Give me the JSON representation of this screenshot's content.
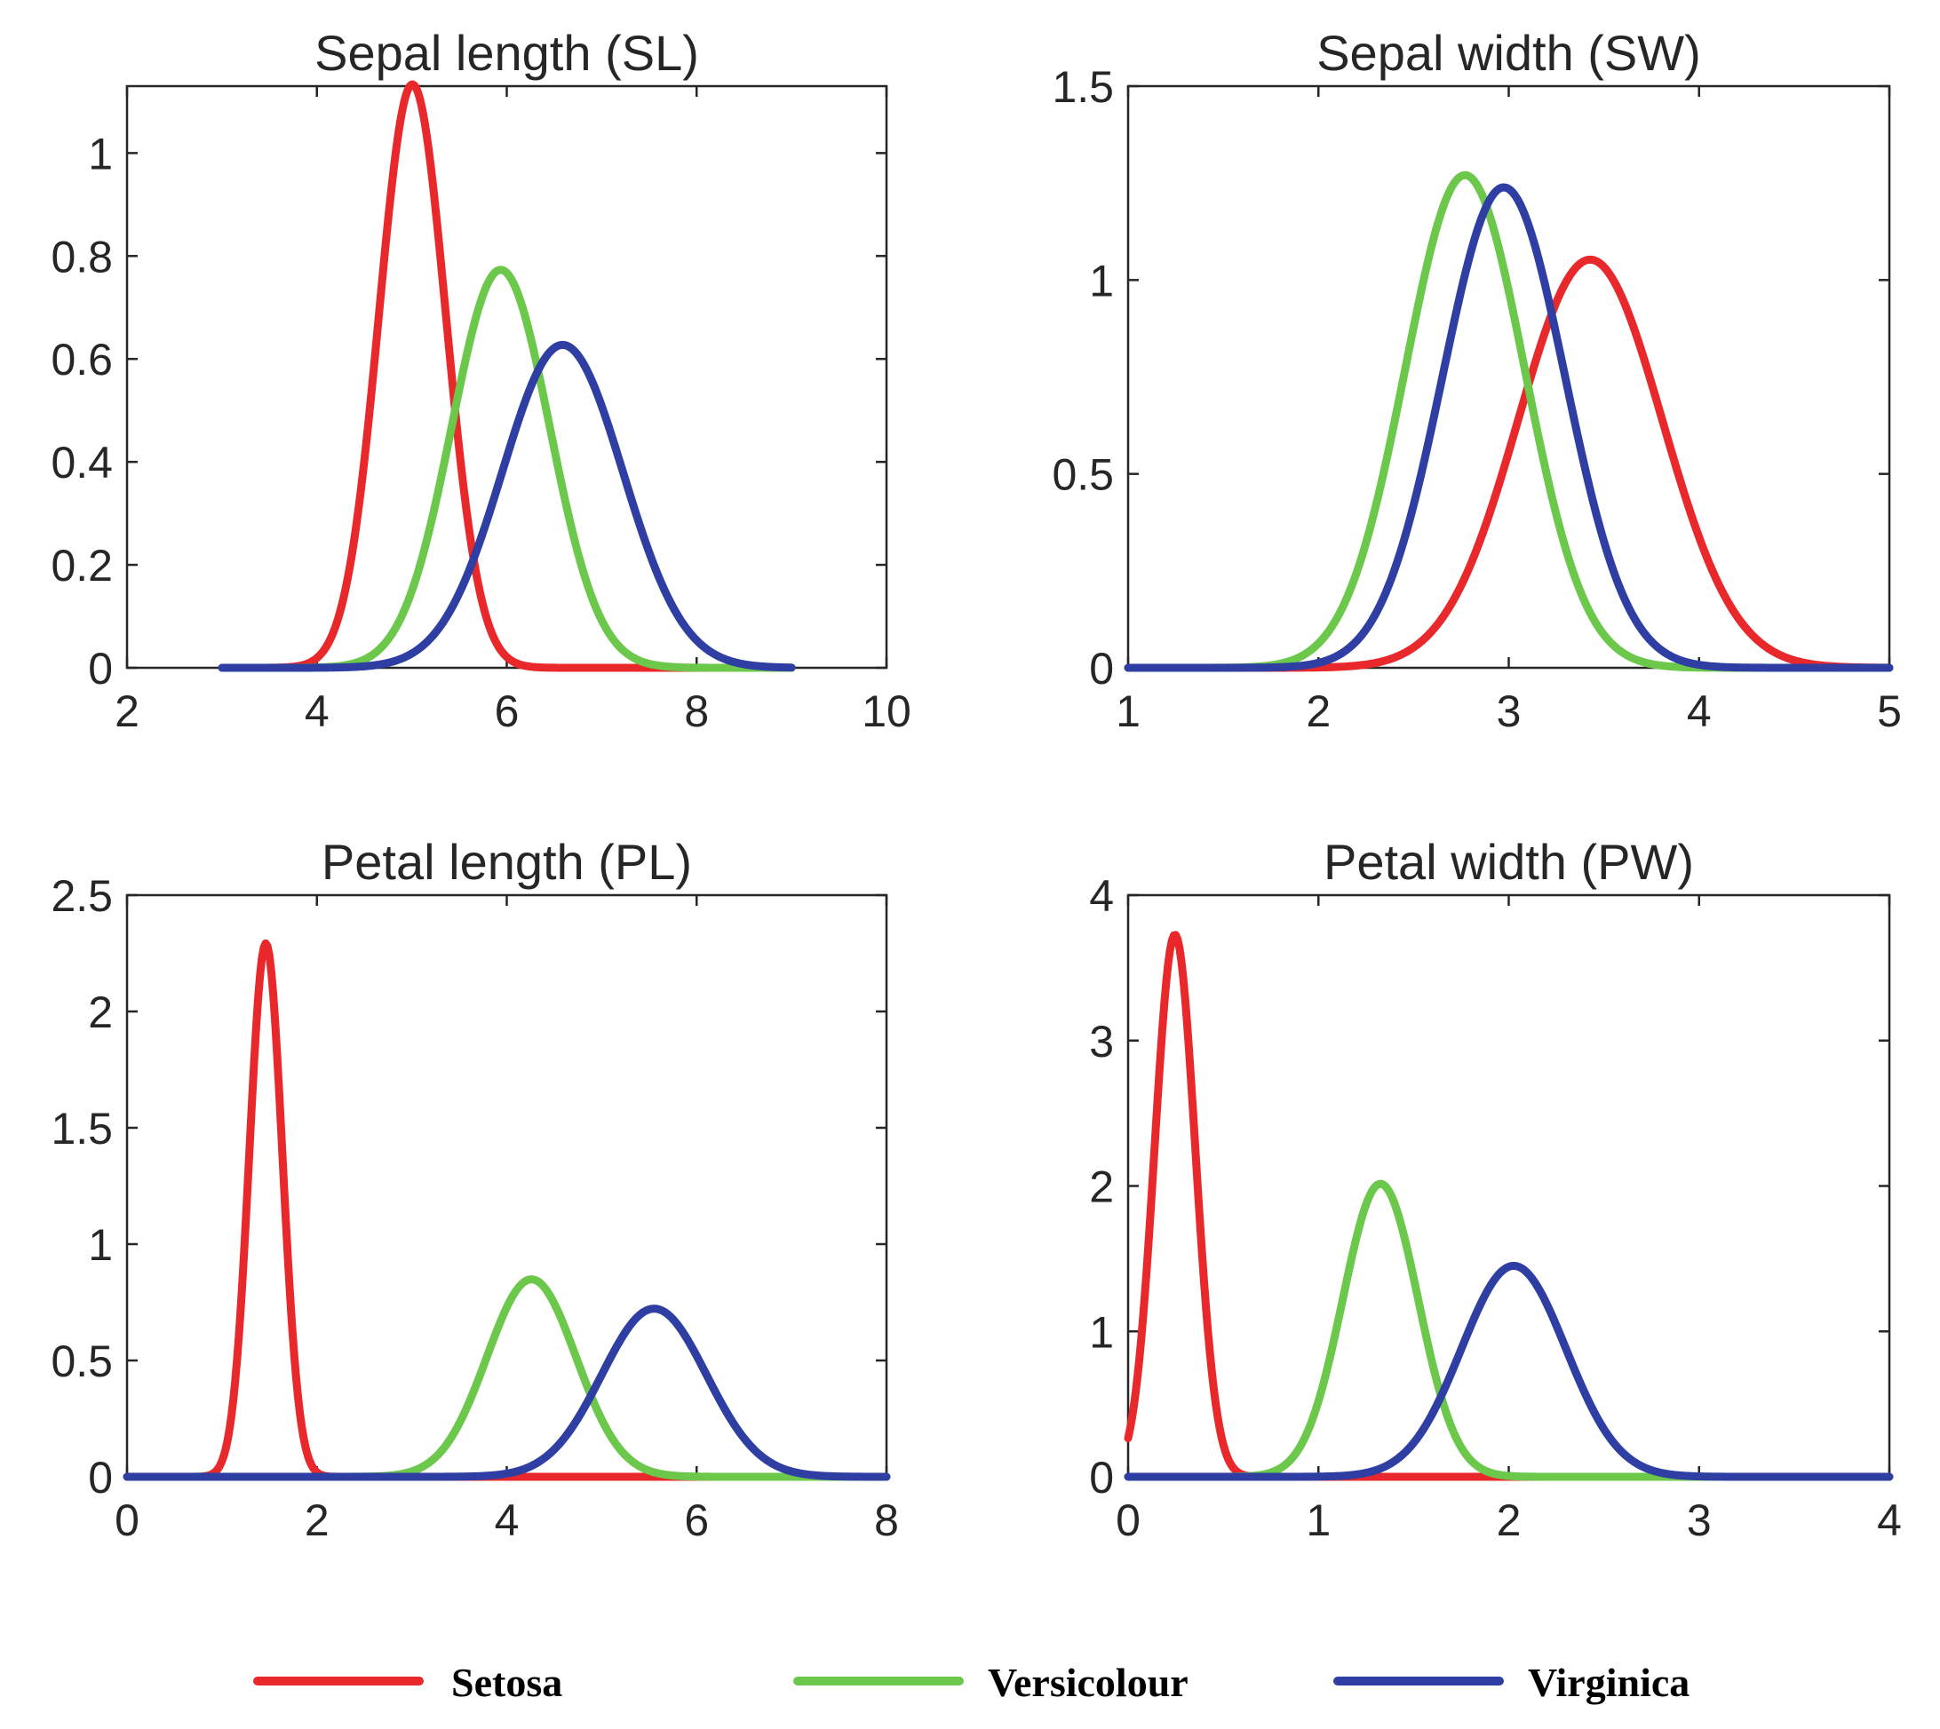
{
  "chart_data": [
    {
      "type": "line",
      "title": "Sepal length (SL)",
      "xlabel": "",
      "ylabel": "",
      "xlim": [
        2,
        10
      ],
      "ylim": [
        0,
        1.13
      ],
      "xticks": [
        "2",
        "4",
        "6",
        "8",
        "10"
      ],
      "yticks": [
        "0",
        "0.2",
        "0.4",
        "0.6",
        "0.8",
        "1"
      ],
      "x_range": [
        3,
        9
      ],
      "series": [
        {
          "name": "Setosa",
          "mean": 5.006,
          "std": 0.352
        },
        {
          "name": "Versicolour",
          "mean": 5.936,
          "std": 0.516
        },
        {
          "name": "Virginica",
          "mean": 6.588,
          "std": 0.636
        }
      ]
    },
    {
      "type": "line",
      "title": "Sepal width (SW)",
      "xlabel": "",
      "ylabel": "",
      "xlim": [
        1,
        5
      ],
      "ylim": [
        0,
        1.5
      ],
      "xticks": [
        "1",
        "2",
        "3",
        "4",
        "5"
      ],
      "yticks": [
        "0",
        "0.5",
        "1",
        "1.5"
      ],
      "x_range": [
        1,
        5
      ],
      "series": [
        {
          "name": "Setosa",
          "mean": 3.428,
          "std": 0.379
        },
        {
          "name": "Versicolour",
          "mean": 2.77,
          "std": 0.314
        },
        {
          "name": "Virginica",
          "mean": 2.974,
          "std": 0.322
        }
      ]
    },
    {
      "type": "line",
      "title": "Petal length (PL)",
      "xlabel": "",
      "ylabel": "",
      "xlim": [
        0,
        8
      ],
      "ylim": [
        0,
        2.5
      ],
      "xticks": [
        "0",
        "2",
        "4",
        "6",
        "8"
      ],
      "yticks": [
        "0",
        "0.5",
        "1",
        "1.5",
        "2",
        "2.5"
      ],
      "x_range": [
        0,
        8
      ],
      "series": [
        {
          "name": "Setosa",
          "mean": 1.462,
          "std": 0.174
        },
        {
          "name": "Versicolour",
          "mean": 4.26,
          "std": 0.47
        },
        {
          "name": "Virginica",
          "mean": 5.552,
          "std": 0.552
        }
      ]
    },
    {
      "type": "line",
      "title": "Petal width (PW)",
      "xlabel": "",
      "ylabel": "",
      "xlim": [
        0,
        4
      ],
      "ylim": [
        0,
        4
      ],
      "xticks": [
        "0",
        "1",
        "2",
        "3",
        "4"
      ],
      "yticks": [
        "0",
        "1",
        "2",
        "3",
        "4"
      ],
      "x_range": [
        0,
        4
      ],
      "series": [
        {
          "name": "Setosa",
          "mean": 0.246,
          "std": 0.107
        },
        {
          "name": "Versicolour",
          "mean": 1.326,
          "std": 0.198
        },
        {
          "name": "Virginica",
          "mean": 2.026,
          "std": 0.275
        }
      ]
    }
  ],
  "legend": {
    "placement": "bottom",
    "items": [
      {
        "label": "Setosa",
        "color": "#e8282b"
      },
      {
        "label": "Versicolour",
        "color": "#6bc84b"
      },
      {
        "label": "Virginica",
        "color": "#2e3ea3"
      }
    ]
  },
  "series_colors": {
    "Setosa": "#e8282b",
    "Versicolour": "#6bc84b",
    "Virginica": "#2e3ea3"
  }
}
